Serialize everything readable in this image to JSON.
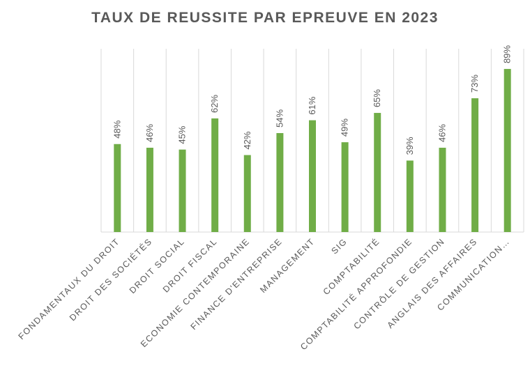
{
  "chart_data": {
    "type": "bar",
    "title": "TAUX DE REUSSITE PAR EPREUVE EN 2023",
    "categories": [
      "FONDAMENTAUX DU DROIT",
      "DROIT DES SOCIÉTÉS",
      "DROIT SOCIAL",
      "DROIT FISCAL",
      "ECONOMIE CONTEMPORAINE",
      "FINANCE D'ENTREPRISE",
      "MANAGEMENT",
      "SIG",
      "COMPTABILITÉ",
      "COMPTABILITÉ APPROFONDIE",
      "CONTRÔLE DE GESTION",
      "ANGLAIS DES AFFAIRES",
      "COMMUNICATION…"
    ],
    "values": [
      48,
      46,
      45,
      62,
      42,
      54,
      61,
      49,
      65,
      39,
      46,
      73,
      89
    ],
    "value_labels": [
      "48%",
      "46%",
      "45%",
      "62%",
      "42%",
      "54%",
      "61%",
      "49%",
      "65%",
      "39%",
      "46%",
      "73%",
      "89%"
    ],
    "ylim": [
      0,
      100
    ],
    "xlabel": "",
    "ylabel": "",
    "grid": "vertical",
    "bar_color": "#70ad47",
    "grid_color": "#d9d9d9",
    "text_color": "#595959"
  }
}
